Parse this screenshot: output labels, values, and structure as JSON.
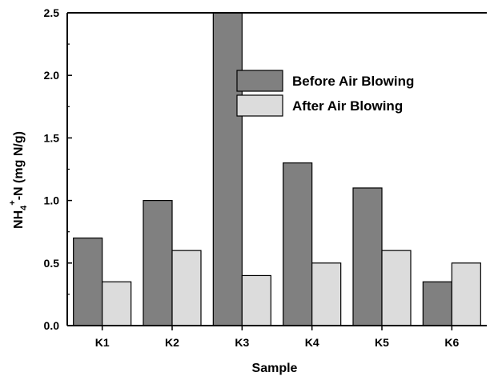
{
  "chart_data": {
    "type": "bar",
    "title": "",
    "xlabel": "Sample",
    "ylabel": {
      "prefix": "NH",
      "subscript": "4",
      "superscript": "+",
      "suffix": "-N (mg N/g)"
    },
    "categories": [
      "K1",
      "K2",
      "K3",
      "K4",
      "K5",
      "K6"
    ],
    "series": [
      {
        "name": "Before Air Blowing",
        "color": "#808080",
        "values": [
          0.7,
          1.0,
          2.5,
          1.3,
          1.1,
          0.35
        ]
      },
      {
        "name": "After Air Blowing",
        "color": "#dcdcdc",
        "values": [
          0.35,
          0.6,
          0.4,
          0.5,
          0.6,
          0.5
        ]
      }
    ],
    "ylim": [
      0,
      2.5
    ],
    "yticks": [
      "0.0",
      "0.5",
      "1.0",
      "1.5",
      "2.0",
      "2.5"
    ],
    "grid": false,
    "legend_position": "top-right"
  }
}
